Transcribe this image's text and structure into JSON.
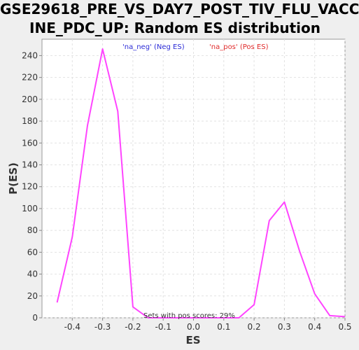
{
  "chart_data": {
    "type": "line",
    "title_lines": [
      "GSE29618_PRE_VS_DAY7_POST_TIV_FLU_VACC",
      "INE_PDC_UP: Random ES distribution"
    ],
    "xlabel": "ES",
    "ylabel": "P(ES)",
    "xlim": [
      -0.5,
      0.5
    ],
    "ylim": [
      0,
      255
    ],
    "x_ticks": [
      -0.4,
      -0.3,
      -0.2,
      -0.1,
      0.0,
      0.1,
      0.2,
      0.3,
      0.4,
      0.5
    ],
    "x_tick_labels": [
      "-0.4",
      "-0.3",
      "-0.2",
      "-0.1",
      "0.0",
      "0.1",
      "0.2",
      "0.3",
      "0.4",
      "0.5"
    ],
    "y_ticks": [
      0,
      20,
      40,
      60,
      80,
      100,
      120,
      140,
      160,
      180,
      200,
      220,
      240
    ],
    "y_tick_labels": [
      "0",
      "20",
      "40",
      "60",
      "80",
      "100",
      "120",
      "140",
      "160",
      "180",
      "200",
      "220",
      "240"
    ],
    "grid": true,
    "legend": [
      {
        "label": "'na_neg' (Neg ES)",
        "color": "#2b2bd6"
      },
      {
        "label": "'na_pos' (Pos ES)",
        "color": "#e02a2a"
      }
    ],
    "annotation": "Sets with pos scores: 29%",
    "series": [
      {
        "color": "#ff44ff",
        "x": [
          -0.45,
          -0.4,
          -0.35,
          -0.3,
          -0.25,
          -0.2,
          -0.15,
          -0.1,
          -0.05,
          0.0,
          0.05,
          0.1,
          0.15,
          0.2,
          0.25,
          0.3,
          0.35,
          0.4,
          0.45,
          0.5
        ],
        "y": [
          14,
          74,
          176,
          246,
          189,
          10,
          0,
          0,
          0,
          0,
          0,
          0,
          0,
          12,
          89,
          106,
          61,
          22,
          2,
          1
        ]
      }
    ]
  }
}
